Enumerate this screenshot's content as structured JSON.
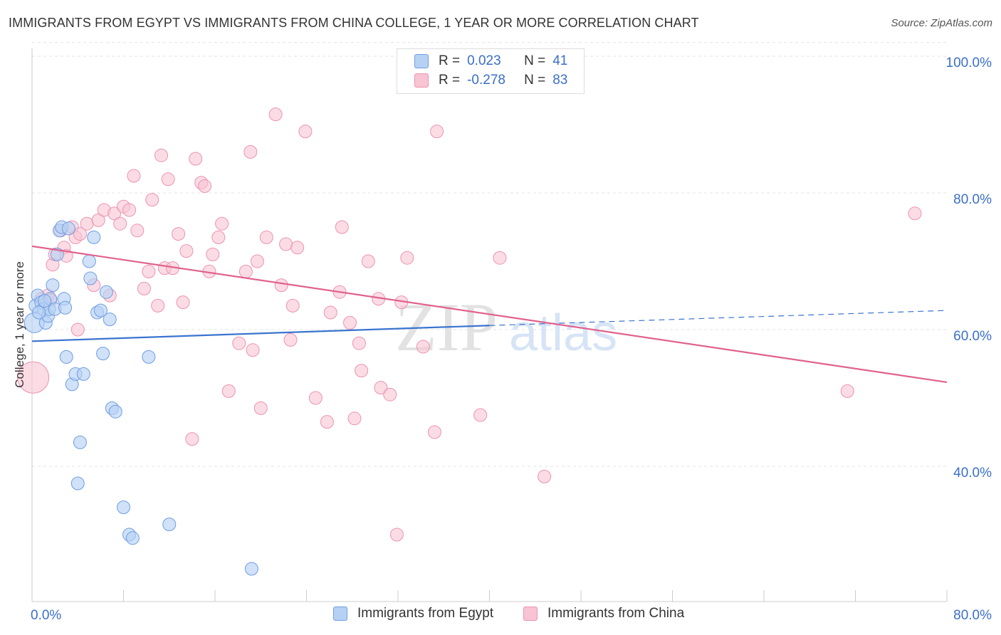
{
  "title": "IMMIGRANTS FROM EGYPT VS IMMIGRANTS FROM CHINA COLLEGE, 1 YEAR OR MORE CORRELATION CHART",
  "source": "Source: ZipAtlas.com",
  "legend": {
    "egypt": {
      "r_label": "R =",
      "r_value": "0.023",
      "n_label": "N =",
      "n_value": "41"
    },
    "china": {
      "r_label": "R =",
      "r_value": "-0.278",
      "n_label": "N =",
      "n_value": "83"
    }
  },
  "colors": {
    "egypt_fill": "#b7d1f5",
    "egypt_stroke": "#6e9ee0",
    "egypt_line": "#3a74d0",
    "china_fill": "#f8c4d4",
    "china_stroke": "#ec93b0",
    "china_line": "#e0628e",
    "accent_text": "#3a6fc8"
  },
  "chart_data": {
    "type": "scatter",
    "title": "IMMIGRANTS FROM EGYPT VS IMMIGRANTS FROM CHINA COLLEGE, 1 YEAR OR MORE CORRELATION CHART",
    "xlabel": "",
    "ylabel": "College, 1 year or more",
    "xlim": [
      0,
      80
    ],
    "ylim": [
      20,
      102
    ],
    "x_tick_labels": [
      "0.0%",
      "80.0%"
    ],
    "y_ticks": [
      40,
      60,
      80,
      100
    ],
    "y_tick_labels": [
      "40.0%",
      "60.0%",
      "80.0%",
      "100.0%"
    ],
    "grid": true,
    "legend_position": "top-center",
    "watermark": "ZIPatlas",
    "series": [
      {
        "name": "Immigrants from Egypt",
        "points": [
          [
            0.2,
            61.0
          ],
          [
            0.3,
            63.5
          ],
          [
            0.5,
            65.0
          ],
          [
            0.8,
            64.0
          ],
          [
            1.0,
            63.0
          ],
          [
            1.2,
            61.0
          ],
          [
            1.4,
            62.0
          ],
          [
            1.5,
            63.0
          ],
          [
            1.6,
            64.5
          ],
          [
            1.8,
            66.5
          ],
          [
            2.0,
            63.0
          ],
          [
            2.2,
            71.0
          ],
          [
            2.4,
            74.5
          ],
          [
            2.6,
            75.0
          ],
          [
            2.8,
            64.5
          ],
          [
            3.0,
            56.0
          ],
          [
            3.2,
            74.8
          ],
          [
            3.5,
            52.0
          ],
          [
            3.8,
            53.5
          ],
          [
            4.0,
            37.5
          ],
          [
            4.2,
            43.5
          ],
          [
            4.5,
            53.5
          ],
          [
            5.0,
            70.0
          ],
          [
            5.1,
            67.5
          ],
          [
            5.4,
            73.5
          ],
          [
            5.7,
            62.5
          ],
          [
            6.0,
            62.8
          ],
          [
            6.2,
            56.5
          ],
          [
            6.5,
            65.5
          ],
          [
            6.8,
            61.5
          ],
          [
            7.0,
            48.5
          ],
          [
            7.3,
            48.0
          ],
          [
            8.0,
            34.0
          ],
          [
            8.5,
            30.0
          ],
          [
            8.8,
            29.5
          ],
          [
            10.2,
            56.0
          ],
          [
            12.0,
            31.5
          ],
          [
            19.2,
            25.0
          ],
          [
            0.6,
            62.5
          ],
          [
            1.1,
            64.2
          ],
          [
            2.9,
            63.2
          ]
        ],
        "trend": {
          "x": [
            0,
            40
          ],
          "y": [
            58.3,
            60.6
          ],
          "dashed_to": [
            80,
            62.8
          ]
        }
      },
      {
        "name": "Immigrants from China",
        "points": [
          [
            0.1,
            53.0
          ],
          [
            0.8,
            64.5
          ],
          [
            1.2,
            64.0
          ],
          [
            1.4,
            65.0
          ],
          [
            1.8,
            69.5
          ],
          [
            2.0,
            71.0
          ],
          [
            2.5,
            74.5
          ],
          [
            2.8,
            72.0
          ],
          [
            3.0,
            70.8
          ],
          [
            3.5,
            75.0
          ],
          [
            3.8,
            73.5
          ],
          [
            4.0,
            60.0
          ],
          [
            4.2,
            74.0
          ],
          [
            4.8,
            75.5
          ],
          [
            5.4,
            66.5
          ],
          [
            5.8,
            76.0
          ],
          [
            6.3,
            77.5
          ],
          [
            6.8,
            65.0
          ],
          [
            7.2,
            77.0
          ],
          [
            7.7,
            75.5
          ],
          [
            8.0,
            78.0
          ],
          [
            8.5,
            77.5
          ],
          [
            8.9,
            82.5
          ],
          [
            9.2,
            74.5
          ],
          [
            9.8,
            66.0
          ],
          [
            10.2,
            68.5
          ],
          [
            10.5,
            79.0
          ],
          [
            11.0,
            63.5
          ],
          [
            11.3,
            85.5
          ],
          [
            11.6,
            69.0
          ],
          [
            11.9,
            82.0
          ],
          [
            12.3,
            69.0
          ],
          [
            12.8,
            74.0
          ],
          [
            13.2,
            64.0
          ],
          [
            13.5,
            71.5
          ],
          [
            14.3,
            85.0
          ],
          [
            14.8,
            81.5
          ],
          [
            15.1,
            81.0
          ],
          [
            15.5,
            68.5
          ],
          [
            15.8,
            71.0
          ],
          [
            16.3,
            73.5
          ],
          [
            16.6,
            75.5
          ],
          [
            17.2,
            51.0
          ],
          [
            18.1,
            58.0
          ],
          [
            18.7,
            68.5
          ],
          [
            19.1,
            86.0
          ],
          [
            19.3,
            57.0
          ],
          [
            19.7,
            70.0
          ],
          [
            20.0,
            48.5
          ],
          [
            20.5,
            73.5
          ],
          [
            21.3,
            91.5
          ],
          [
            21.8,
            66.5
          ],
          [
            22.2,
            72.5
          ],
          [
            22.6,
            58.5
          ],
          [
            22.8,
            63.5
          ],
          [
            23.2,
            72.0
          ],
          [
            23.9,
            89.0
          ],
          [
            24.8,
            50.0
          ],
          [
            25.8,
            46.5
          ],
          [
            26.1,
            62.5
          ],
          [
            26.9,
            65.5
          ],
          [
            27.1,
            75.0
          ],
          [
            27.8,
            61.0
          ],
          [
            28.2,
            47.0
          ],
          [
            28.6,
            58.0
          ],
          [
            28.8,
            54.0
          ],
          [
            29.4,
            70.0
          ],
          [
            30.3,
            64.5
          ],
          [
            30.5,
            51.5
          ],
          [
            31.3,
            50.5
          ],
          [
            31.9,
            30.0
          ],
          [
            32.3,
            64.0
          ],
          [
            32.8,
            70.5
          ],
          [
            34.2,
            57.5
          ],
          [
            35.2,
            45.0
          ],
          [
            35.4,
            89.0
          ],
          [
            39.2,
            47.5
          ],
          [
            40.9,
            70.5
          ],
          [
            44.8,
            38.5
          ],
          [
            71.3,
            51.0
          ],
          [
            77.2,
            77.0
          ],
          [
            14.0,
            44.0
          ],
          [
            1.6,
            64.3
          ]
        ],
        "trend": {
          "x": [
            0,
            80
          ],
          "y": [
            72.2,
            52.3
          ]
        }
      }
    ]
  },
  "bottom_legend": [
    "Immigrants from Egypt",
    "Immigrants from China"
  ]
}
